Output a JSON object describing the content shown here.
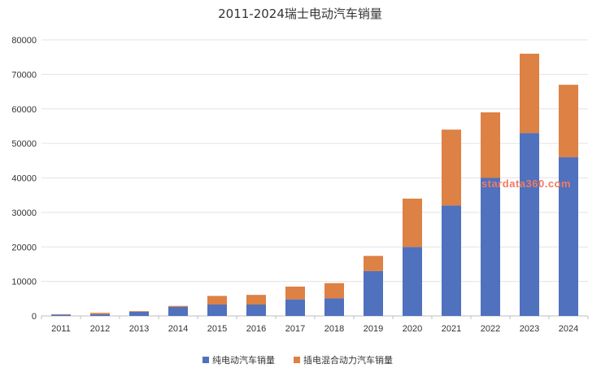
{
  "chart_data": {
    "type": "bar",
    "stacked": true,
    "title": "2011-2024瑞士电动汽车销量",
    "xlabel": "",
    "ylabel": "",
    "categories": [
      "2011",
      "2012",
      "2013",
      "2014",
      "2015",
      "2016",
      "2017",
      "2018",
      "2019",
      "2020",
      "2021",
      "2022",
      "2023",
      "2024"
    ],
    "series": [
      {
        "name": "纯电动汽车销量",
        "color": "#4f71be",
        "values": [
          400,
          500,
          1200,
          2600,
          3300,
          3300,
          4800,
          5100,
          13000,
          20000,
          32000,
          40000,
          53000,
          46000
        ]
      },
      {
        "name": "插电混合动力汽车销量",
        "color": "#dd8144",
        "values": [
          100,
          400,
          200,
          300,
          2500,
          2800,
          3700,
          4400,
          4400,
          14000,
          22000,
          19000,
          23000,
          21000
        ]
      }
    ],
    "ylim": [
      0,
      80000
    ],
    "yticks": [
      "0",
      "10000",
      "20000",
      "30000",
      "40000",
      "50000",
      "60000",
      "70000",
      "80000"
    ],
    "grid": true,
    "legend_position": "bottom",
    "watermark": "stardata360.com"
  }
}
